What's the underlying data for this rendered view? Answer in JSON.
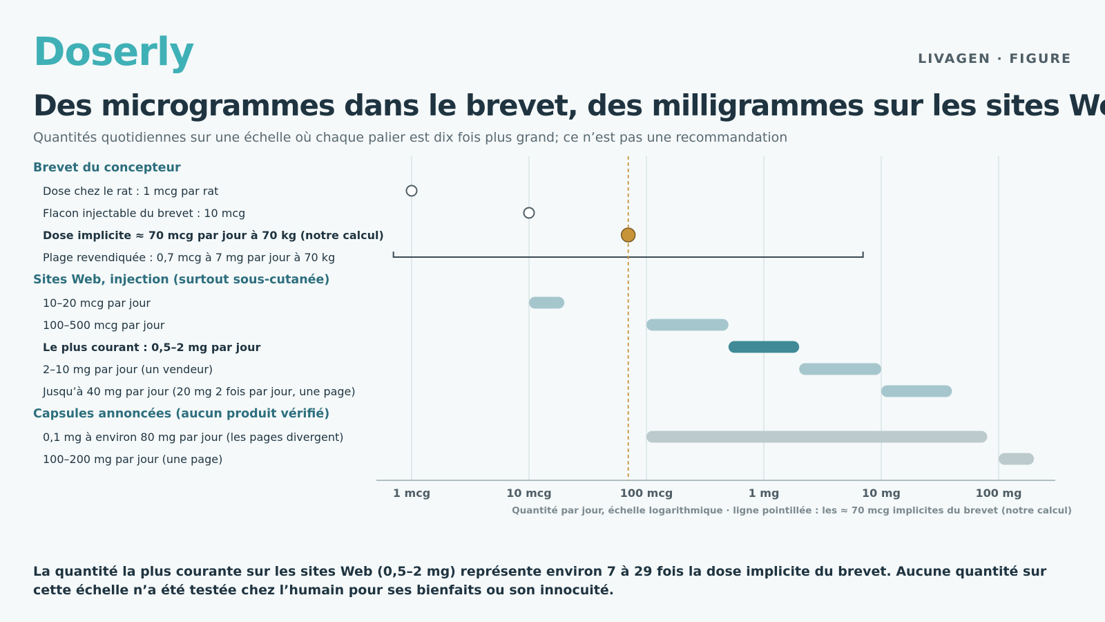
{
  "brand": "Doserly",
  "kicker": "LIVAGEN · FIGURE",
  "title": "Des microgrammes dans le brevet, des milligrammes sur les sites Web",
  "subtitle": "Quantités quotidiennes sur une échelle où chaque palier est dix fois plus grand; ce n’est pas une recommandation",
  "footnote": "La quantité la plus courante sur les sites Web (0,5–2 mg) représente environ 7 à 29 fois la dose implicite du brevet. Aucune quantité sur cette échelle n’a été testée chez l’humain pour ses bienfaits ou son innocuité.",
  "colors": {
    "brand": "#3fb0b6",
    "text": "#1f3440",
    "group_heading": "#2e6f7e",
    "marker_outline": "#4f5e66",
    "highlight_point": "#c8943a",
    "reference_line": "#c8943a",
    "bar_web": "#a5c6cc",
    "bar_web_highlight": "#3f8a96",
    "bar_capsule": "#bccacd",
    "grid": "#d9e4e6"
  },
  "chart_data": {
    "type": "range",
    "x_scale": "log",
    "x_unit": "mcg",
    "x_ticks": [
      {
        "value": 1,
        "label": "1 mcg"
      },
      {
        "value": 10,
        "label": "10 mcg"
      },
      {
        "value": 100,
        "label": "100 mcg"
      },
      {
        "value": 1000,
        "label": "1 mg"
      },
      {
        "value": 10000,
        "label": "10 mg"
      },
      {
        "value": 100000,
        "label": "100 mg"
      }
    ],
    "xlim": [
      0.5,
      400000
    ],
    "xlabel": "Quantité par jour, échelle logarithmique · ligne pointillée : les ≈ 70 mcg implicites du brevet (notre calcul)",
    "reference_line": {
      "value": 70,
      "style": "dashed"
    },
    "grid": true,
    "groups": [
      {
        "heading": "Brevet du concepteur",
        "rows": [
          {
            "label": "Dose chez le rat : 1 mcg par rat",
            "kind": "point",
            "value": 1,
            "style": "open",
            "bold": false
          },
          {
            "label": "Flacon injectable du brevet : 10 mcg",
            "kind": "point",
            "value": 10,
            "style": "open",
            "bold": false
          },
          {
            "label": "Dose implicite ≈ 70 mcg par jour à 70 kg (notre calcul)",
            "kind": "point",
            "value": 70,
            "style": "filled",
            "bold": true
          },
          {
            "label": "Plage revendiquée : 0,7 mcg à 7 mg par jour à 70 kg",
            "kind": "bracket",
            "low": 0.7,
            "high": 7000,
            "bold": false
          }
        ]
      },
      {
        "heading": "Sites Web, injection (surtout sous-cutanée)",
        "rows": [
          {
            "label": "10–20 mcg par jour",
            "kind": "bar",
            "low": 10,
            "high": 20,
            "style": "web",
            "bold": false
          },
          {
            "label": "100–500 mcg par jour",
            "kind": "bar",
            "low": 100,
            "high": 500,
            "style": "web",
            "bold": false
          },
          {
            "label": "Le plus courant : 0,5–2 mg par jour",
            "kind": "bar",
            "low": 500,
            "high": 2000,
            "style": "web_highlight",
            "bold": true
          },
          {
            "label": "2–10 mg par jour (un vendeur)",
            "kind": "bar",
            "low": 2000,
            "high": 10000,
            "style": "web",
            "bold": false
          },
          {
            "label": "Jusqu’à 40 mg par jour (20 mg 2 fois par jour, une page)",
            "kind": "bar",
            "low": 10000,
            "high": 40000,
            "style": "web",
            "bold": false
          }
        ]
      },
      {
        "heading": "Capsules annoncées (aucun produit vérifié)",
        "rows": [
          {
            "label": "0,1 mg à environ 80 mg par jour (les pages divergent)",
            "kind": "bar",
            "low": 100,
            "high": 80000,
            "style": "capsule",
            "bold": false
          },
          {
            "label": "100–200 mg par jour (une page)",
            "kind": "bar",
            "low": 100000,
            "high": 200000,
            "style": "capsule",
            "bold": false
          }
        ]
      }
    ]
  }
}
